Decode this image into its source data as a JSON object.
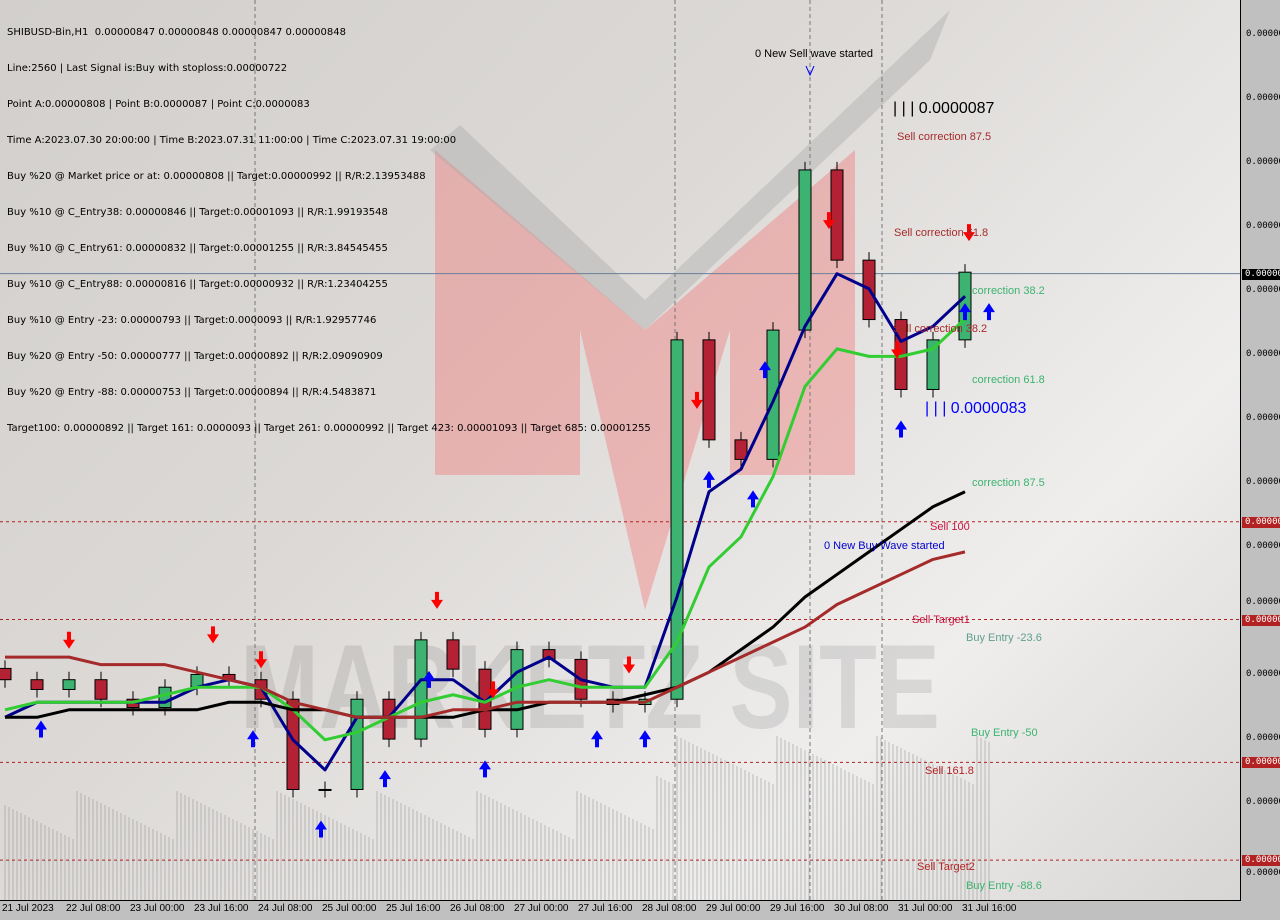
{
  "header": {
    "lines": [
      "SHIBUSD-Bin,H1  0.00000847 0.00000848 0.00000847 0.00000848",
      "Line:2560 | Last Signal is:Buy with stoploss:0.00000722",
      "Point A:0.00000808 | Point B:0.0000087 | Point C:0.0000083",
      "Time A:2023.07.30 20:00:00 | Time B:2023.07.31 11:00:00 | Time C:2023.07.31 19:00:00",
      "Buy %20 @ Market price or at: 0.00000808 || Target:0.00000992 || R/R:2.13953488",
      "Buy %10 @ C_Entry38: 0.00000846 || Target:0.00001093 || R/R:1.99193548",
      "Buy %10 @ C_Entry61: 0.00000832 || Target:0.00001255 || R/R:3.84545455",
      "Buy %10 @ C_Entry88: 0.00000816 || Target:0.00000932 || R/R:1.23404255",
      "Buy %10 @ Entry -23: 0.00000793 || Target:0.0000093 || R/R:1.92957746",
      "Buy %20 @ Entry -50: 0.00000777 || Target:0.00000892 || R/R:2.09090909",
      "Buy %20 @ Entry -88: 0.00000753 || Target:0.00000894 || R/R:4.5483871",
      "Target100: 0.00000892 || Target 161: 0.0000093 || Target 261: 0.00000992 || Target 423: 0.00001093 || Target 685: 0.00001255"
    ]
  },
  "annotations": {
    "new_sell_wave": "0 New Sell wave started",
    "point_b": "| | | 0.0000087",
    "sell_corr_875": "Sell correction 87.5",
    "sell_corr_618": "Sell correction 61.8",
    "sell_corr_382": "Sell correction 38.2",
    "corr_382": "correction 38.2",
    "corr_618": "correction 61.8",
    "point_c": "| | | 0.0000083",
    "corr_875": "correction 87.5",
    "sell_100": "Sell 100",
    "new_buy_wave": "0 New Buy Wave started",
    "sell_target1": "Sell Target1",
    "buy_entry_236": "Buy Entry -23.6",
    "buy_entry_50": "Buy Entry -50",
    "sell_1618": "Sell 161.8",
    "sell_target2": "Sell Target2",
    "buy_entry_886": "Buy Entry -88.6"
  },
  "watermark": "MARKETZ SITE",
  "y_axis": {
    "tick_labels": [
      "0.000000",
      "0.000000",
      "0.000000",
      "0.000000",
      "0.000000",
      "0.000000",
      "0.000000",
      "0.000000",
      "0.000000",
      "0.000000",
      "0.000000",
      "0.000000",
      "0.000000",
      "0.000000"
    ],
    "current_price_badge": "0.000000",
    "level_badges": [
      "0.00000",
      "0.00000",
      "0.00000",
      "0.00000"
    ]
  },
  "chart_data": {
    "type": "candlestick",
    "title": "SHIBUSD-Bin,H1",
    "ylim": [
      7.647e-06,
      8.844e-06
    ],
    "current_price": 8.48e-06,
    "x_tick_labels": [
      "21 Jul 2023",
      "22 Jul 08:00",
      "23 Jul 00:00",
      "23 Jul 16:00",
      "24 Jul 08:00",
      "25 Jul 00:00",
      "25 Jul 16:00",
      "26 Jul 08:00",
      "27 Jul 00:00",
      "27 Jul 16:00",
      "28 Jul 08:00",
      "29 Jul 00:00",
      "29 Jul 16:00",
      "30 Jul 08:00",
      "31 Jul 00:00",
      "31 Jul 16:00"
    ],
    "times": [
      "2023-07-21 16:00",
      "2023-07-22 00:00",
      "2023-07-22 08:00",
      "2023-07-22 16:00",
      "2023-07-23 00:00",
      "2023-07-23 08:00",
      "2023-07-23 16:00",
      "2023-07-24 00:00",
      "2023-07-24 08:00",
      "2023-07-24 16:00",
      "2023-07-25 00:00",
      "2023-07-25 08:00",
      "2023-07-25 16:00",
      "2023-07-26 00:00",
      "2023-07-26 08:00",
      "2023-07-26 16:00",
      "2023-07-27 00:00",
      "2023-07-27 08:00",
      "2023-07-27 16:00",
      "2023-07-28 00:00",
      "2023-07-28 08:00",
      "2023-07-28 16:00",
      "2023-07-29 00:00",
      "2023-07-29 08:00",
      "2023-07-29 16:00",
      "2023-07-30 00:00",
      "2023-07-30 08:00",
      "2023-07-30 16:00",
      "2023-07-31 00:00",
      "2023-07-31 08:00",
      "2023-07-31 16:00"
    ],
    "close": [
      7.94e-06,
      7.927e-06,
      7.94e-06,
      7.914e-06,
      7.903e-06,
      7.93e-06,
      7.947e-06,
      7.94e-06,
      7.914e-06,
      7.794e-06,
      7.794e-06,
      7.914e-06,
      7.861e-06,
      7.993e-06,
      7.954e-06,
      7.874e-06,
      7.98e-06,
      7.967e-06,
      7.914e-06,
      7.907e-06,
      7.914e-06,
      8.392e-06,
      8.259e-06,
      8.233e-06,
      8.405e-06,
      8.618e-06,
      8.498e-06,
      8.419e-06,
      8.326e-06,
      8.392e-06,
      8.482e-06
    ],
    "series": [
      {
        "color": "#00008b",
        "values": [
          7.89e-06,
          7.91e-06,
          7.91e-06,
          7.91e-06,
          7.91e-06,
          7.91e-06,
          7.93e-06,
          7.94e-06,
          7.93e-06,
          7.86e-06,
          7.82e-06,
          7.89e-06,
          7.89e-06,
          7.94e-06,
          7.94e-06,
          7.91e-06,
          7.95e-06,
          7.97e-06,
          7.94e-06,
          7.93e-06,
          7.93e-06,
          8.05e-06,
          8.19e-06,
          8.22e-06,
          8.31e-06,
          8.41e-06,
          8.48e-06,
          8.46e-06,
          8.39e-06,
          8.41e-06,
          8.45e-06
        ]
      },
      {
        "color": "#32cd32",
        "values": [
          7.9e-06,
          7.91e-06,
          7.91e-06,
          7.91e-06,
          7.91e-06,
          7.92e-06,
          7.93e-06,
          7.93e-06,
          7.93e-06,
          7.9e-06,
          7.86e-06,
          7.87e-06,
          7.89e-06,
          7.91e-06,
          7.92e-06,
          7.91e-06,
          7.93e-06,
          7.94e-06,
          7.93e-06,
          7.93e-06,
          7.93e-06,
          7.99e-06,
          8.09e-06,
          8.13e-06,
          8.21e-06,
          8.33e-06,
          8.38e-06,
          8.37e-06,
          8.37e-06,
          8.38e-06,
          8.42e-06
        ]
      },
      {
        "color": "#000000",
        "values": [
          7.89e-06,
          7.89e-06,
          7.9e-06,
          7.9e-06,
          7.9e-06,
          7.9e-06,
          7.9e-06,
          7.91e-06,
          7.91e-06,
          7.9e-06,
          7.9e-06,
          7.89e-06,
          7.89e-06,
          7.89e-06,
          7.89e-06,
          7.9e-06,
          7.9e-06,
          7.91e-06,
          7.91e-06,
          7.91e-06,
          7.92e-06,
          7.93e-06,
          7.95e-06,
          7.98e-06,
          8.01e-06,
          8.05e-06,
          8.08e-06,
          8.11e-06,
          8.14e-06,
          8.17e-06,
          8.19e-06
        ]
      },
      {
        "color": "#a52a2a",
        "values": [
          7.97e-06,
          7.97e-06,
          7.97e-06,
          7.96e-06,
          7.96e-06,
          7.96e-06,
          7.95e-06,
          7.94e-06,
          7.93e-06,
          7.91e-06,
          7.9e-06,
          7.89e-06,
          7.89e-06,
          7.89e-06,
          7.9e-06,
          7.9e-06,
          7.91e-06,
          7.91e-06,
          7.91e-06,
          7.91e-06,
          7.91e-06,
          7.93e-06,
          7.95e-06,
          7.97e-06,
          7.99e-06,
          8.01e-06,
          8.04e-06,
          8.06e-06,
          8.08e-06,
          8.1e-06,
          8.11e-06
        ]
      }
    ],
    "levels": [
      {
        "label": "Sell 100",
        "value": 8.15e-06
      },
      {
        "label": "Sell Target1",
        "value": 8.02e-06
      },
      {
        "label": "Sell 161.8",
        "value": 7.83e-06
      },
      {
        "label": "Sell Target2",
        "value": 7.7e-06
      }
    ],
    "sell_signals": [
      "2023-07-22 08:00",
      "2023-07-23 20:00",
      "2023-07-24 08:00",
      "2023-07-26 04:00",
      "2023-07-26 18:00",
      "2023-07-28 04:00",
      "2023-07-28 21:00",
      "2023-07-30 06:00",
      "2023-07-30 23:00",
      "2023-07-31 17:00"
    ],
    "buy_signals": [
      "2023-07-22 01:00",
      "2023-07-24 06:00",
      "2023-07-24 23:00",
      "2023-07-25 15:00",
      "2023-07-26 02:00",
      "2023-07-26 16:00",
      "2023-07-27 20:00",
      "2023-07-28 08:00",
      "2023-07-29 00:00",
      "2023-07-29 11:00",
      "2023-07-29 14:00",
      "2023-07-31 00:00",
      "2023-07-31 16:00",
      "2023-07-31 22:00"
    ],
    "colors": {
      "bull": "#3cb371",
      "bear": "#b22234",
      "price_line": "#6a7f99",
      "level": "#b22222",
      "sell_arrow": "#ff0000",
      "buy_arrow": "#0000ff"
    }
  }
}
